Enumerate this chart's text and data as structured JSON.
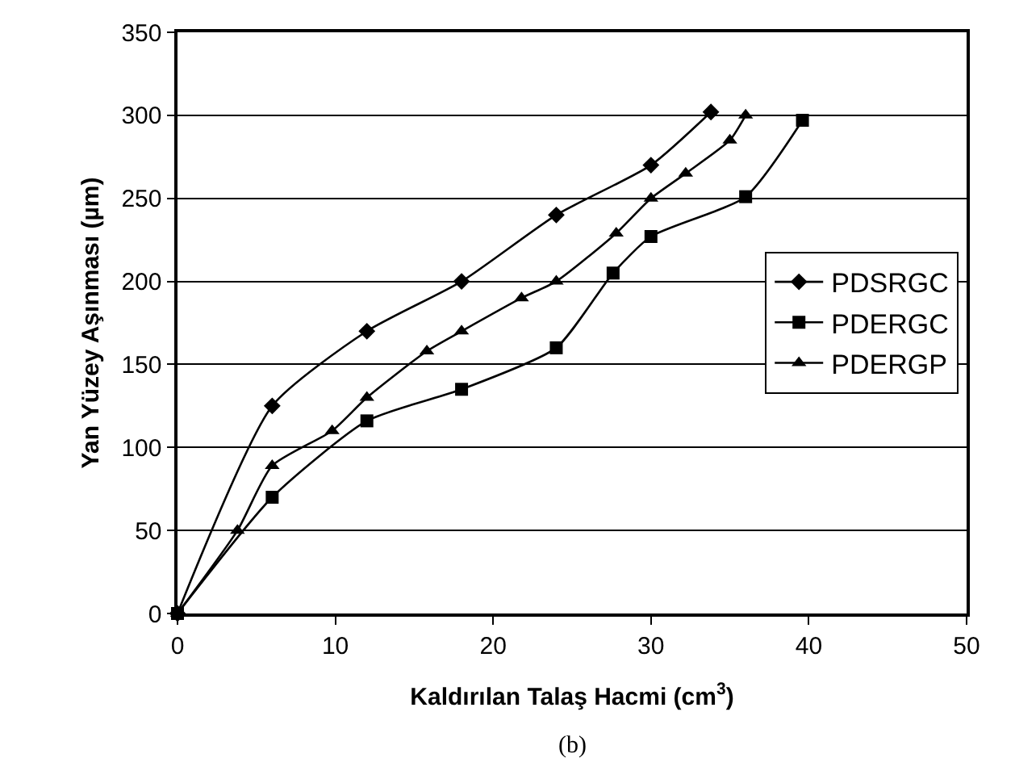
{
  "chart_data": {
    "type": "line",
    "xlabel": "Kaldırılan Talaş Hacmi (cm$^{3}$)",
    "ylabel": "Yan Yüzey Aşınması (µm)",
    "annotations": [
      "(b)"
    ],
    "series": [
      {
        "name": "PDSRGC",
        "color": "#000000",
        "marker": "diamond",
        "x": [
          0,
          6,
          12,
          18,
          24,
          30,
          33.8
        ],
        "values": [
          0,
          125,
          170,
          200,
          240,
          270,
          302
        ]
      },
      {
        "name": "PDERGC",
        "color": "#000000",
        "marker": "square",
        "x": [
          0,
          6,
          12,
          18,
          24,
          27.6,
          30,
          36,
          39.6
        ],
        "values": [
          0,
          70,
          116,
          135,
          160,
          205,
          227,
          251,
          297
        ]
      },
      {
        "name": "PDERGP",
        "color": "#000000",
        "marker": "triangle",
        "x": [
          0,
          3.8,
          6,
          9.8,
          12,
          15.8,
          18,
          21.8,
          24,
          27.8,
          30,
          32.2,
          35,
          36
        ],
        "values": [
          0,
          50,
          89,
          110,
          130,
          158,
          170,
          190,
          200,
          229,
          250,
          265,
          285,
          300
        ]
      }
    ],
    "xlim": [
      0,
      50
    ],
    "xticks": [
      0,
      10,
      20,
      30,
      40,
      50
    ],
    "ylim": [
      0,
      350
    ],
    "yticks": [
      0,
      50,
      100,
      150,
      200,
      250,
      300,
      350
    ],
    "grid": "y",
    "legend": "right",
    "line_style": "solid"
  }
}
